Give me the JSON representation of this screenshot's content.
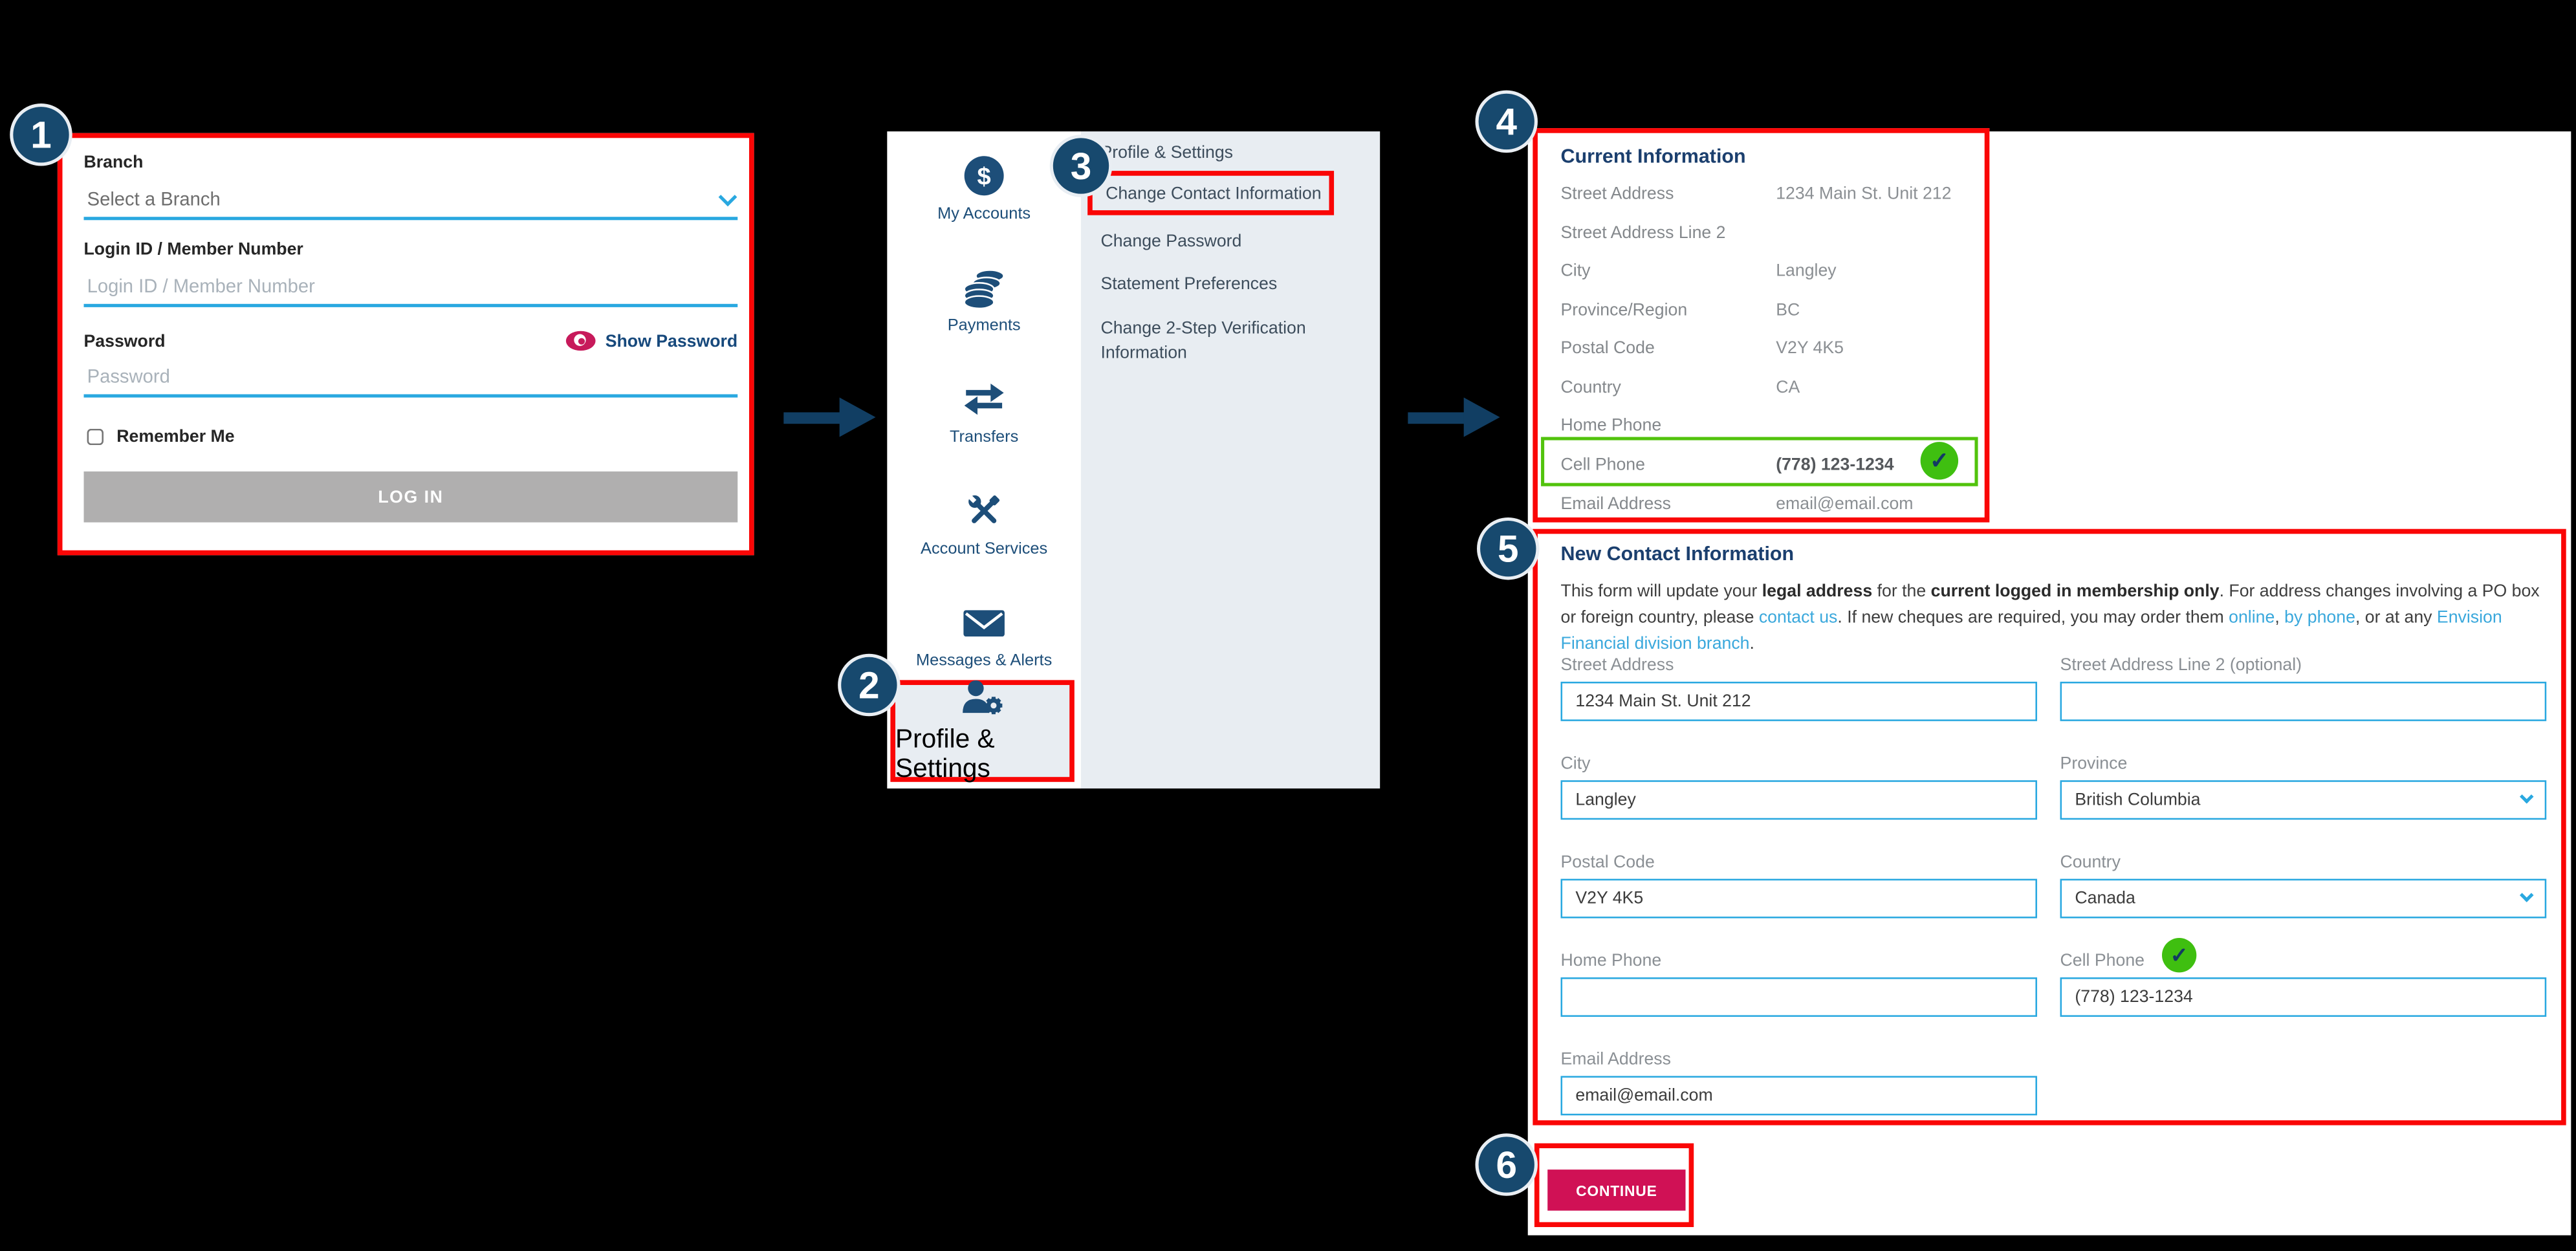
{
  "colors": {
    "annotation_red": "#fa0606",
    "annotation_green": "#52c30d",
    "badge_navy": "#17496e",
    "accent_cyan": "#29a8e0",
    "link_blue": "#3aa8dc",
    "heading_navy": "#1b3f6e",
    "sidebar_navy": "#1d4e79",
    "button_magenta": "#d01155",
    "login_button_gray": "#b0afaf",
    "menu_bg": "#e8edf2"
  },
  "steps": [
    "1",
    "2",
    "3",
    "4",
    "5",
    "6"
  ],
  "login": {
    "branch_label": "Branch",
    "branch_value": "Select a Branch",
    "login_label": "Login ID / Member Number",
    "login_placeholder": "Login ID / Member Number",
    "password_label": "Password",
    "show_password_label": "Show Password",
    "password_placeholder": "Password",
    "remember_label": "Remember Me",
    "submit_label": "LOG IN"
  },
  "sidebar": {
    "items": [
      {
        "label": "My Accounts",
        "icon": "dollar-circle-icon"
      },
      {
        "label": "Payments",
        "icon": "coins-icon"
      },
      {
        "label": "Transfers",
        "icon": "transfer-arrows-icon"
      },
      {
        "label": "Account Services",
        "icon": "tools-icon"
      },
      {
        "label": "Messages & Alerts",
        "icon": "envelope-icon"
      },
      {
        "label": "Profile & Settings",
        "icon": "person-gear-icon"
      }
    ]
  },
  "menu": {
    "items": [
      "Profile & Settings",
      "Change Contact Information",
      "Change Password",
      "Statement Preferences",
      "Change 2-Step Verification Information"
    ]
  },
  "current_info": {
    "title": "Current Information",
    "rows": [
      {
        "label": "Street Address",
        "value": "1234 Main St. Unit 212"
      },
      {
        "label": "Street Address Line 2",
        "value": ""
      },
      {
        "label": "City",
        "value": "Langley"
      },
      {
        "label": "Province/Region",
        "value": "BC"
      },
      {
        "label": "Postal Code",
        "value": "V2Y 4K5"
      },
      {
        "label": "Country",
        "value": "CA"
      },
      {
        "label": "Home Phone",
        "value": ""
      },
      {
        "label": "Cell Phone",
        "value": "(778) 123-1234",
        "verified": true
      },
      {
        "label": "Email Address",
        "value": "email@email.com"
      }
    ]
  },
  "new_contact": {
    "title": "New Contact Information",
    "intro": [
      {
        "t": "This form will update your "
      },
      {
        "t": "legal address",
        "b": true
      },
      {
        "t": " for the "
      },
      {
        "t": "current logged in membership only",
        "b": true
      },
      {
        "t": ". For address changes involving a PO box or foreign country, please "
      },
      {
        "t": "contact us",
        "l": true
      },
      {
        "t": ". If new cheques are required, you may order them "
      },
      {
        "t": "online",
        "l": true
      },
      {
        "t": ", "
      },
      {
        "t": "by phone",
        "l": true
      },
      {
        "t": ", or at any "
      },
      {
        "t": "Envision Financial division branch",
        "l": true
      },
      {
        "t": "."
      }
    ],
    "fields": {
      "street": {
        "label": "Street Address",
        "value": "1234 Main St. Unit 212"
      },
      "street2": {
        "label": "Street Address Line 2 (optional)",
        "value": ""
      },
      "city": {
        "label": "City",
        "value": "Langley"
      },
      "province": {
        "label": "Province",
        "value": "British Columbia"
      },
      "postal": {
        "label": "Postal Code",
        "value": "V2Y 4K5"
      },
      "country": {
        "label": "Country",
        "value": "Canada"
      },
      "home_phone": {
        "label": "Home Phone",
        "value": ""
      },
      "cell_phone": {
        "label": "Cell Phone",
        "value": "(778) 123-1234",
        "verified": true
      },
      "email": {
        "label": "Email Address",
        "value": "email@email.com"
      }
    },
    "continue_label": "CONTINUE"
  }
}
